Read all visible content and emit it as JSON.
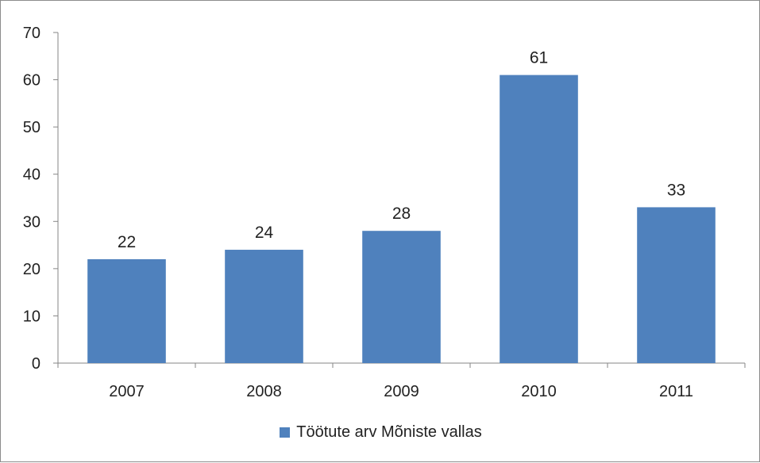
{
  "chart_data": {
    "type": "bar",
    "categories": [
      "2007",
      "2008",
      "2009",
      "2010",
      "2011"
    ],
    "series": [
      {
        "name": "Töötute arv Mõniste vallas",
        "values": [
          22,
          24,
          28,
          61,
          33
        ],
        "color": "#4f81bd"
      }
    ],
    "title": "",
    "xlabel": "",
    "ylabel": "",
    "ylim": [
      0,
      70
    ],
    "yticks": [
      "0",
      "10",
      "20",
      "30",
      "40",
      "50",
      "60",
      "70"
    ],
    "data_labels": [
      "22",
      "24",
      "28",
      "61",
      "33"
    ],
    "grid": false,
    "legend_position": "bottom"
  }
}
